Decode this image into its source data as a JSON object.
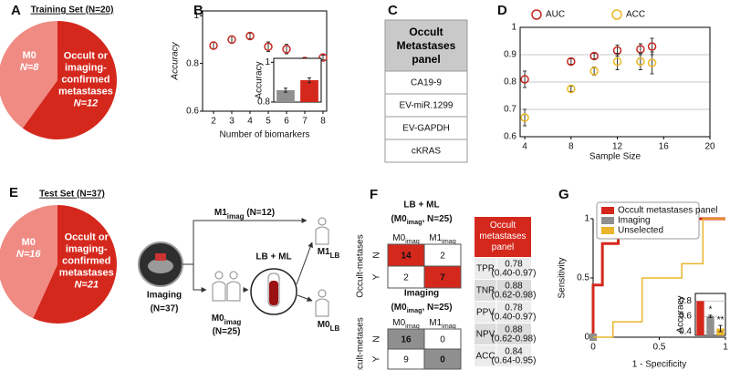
{
  "panel_labels": [
    "A",
    "B",
    "C",
    "D",
    "E",
    "F",
    "G"
  ],
  "chart_data": [
    {
      "type": "pie",
      "title": "Training Set (N=20)",
      "categories": [
        "M0",
        "Occult or imaging-confirmed metastases"
      ],
      "values": [
        8,
        12
      ],
      "value_labels": [
        "N=8",
        "N=12"
      ],
      "colors": [
        "#ef8b83",
        "#d5281d"
      ]
    },
    {
      "type": "scatter",
      "xlabel": "Number of biomarkers",
      "ylabel": "Accuracy",
      "x": [
        2,
        3,
        4,
        5,
        6,
        7,
        8
      ],
      "series": [
        {
          "color": "#c62a22",
          "values": [
            0.875,
            0.9,
            0.915,
            0.87,
            0.86,
            0.81,
            0.825
          ],
          "errors": [
            0.015,
            0.015,
            0.012,
            0.02,
            0.02,
            0.015,
            0.01
          ]
        }
      ],
      "xlim": [
        1.4,
        8.2
      ],
      "ylim": [
        0.6,
        1.02
      ],
      "xticks": [
        2,
        3,
        4,
        5,
        6,
        7,
        8
      ],
      "yticks": [
        0.6,
        0.8,
        1
      ]
    },
    {
      "type": "bar",
      "ylabel": "Accuracy",
      "values": [
        0.86,
        0.91
      ],
      "errors": [
        0.01,
        0.012
      ],
      "colors": [
        "#8f8f8f",
        "#d5281d"
      ],
      "ylim": [
        0.8,
        1.02
      ],
      "yticks": [
        0.8,
        1
      ]
    },
    {
      "type": "scatter",
      "xlabel": "Sample Size",
      "x": [
        4,
        8,
        10,
        12,
        14,
        15
      ],
      "series": [
        {
          "name": "AUC",
          "color": "#c62a22",
          "values": [
            0.81,
            0.875,
            0.895,
            0.915,
            0.92,
            0.93
          ],
          "errors": [
            0.03,
            0.01,
            0.01,
            0.02,
            0.02,
            0.03
          ]
        },
        {
          "name": "ACC",
          "color": "#e9b824",
          "values": [
            0.67,
            0.775,
            0.84,
            0.875,
            0.875,
            0.87
          ],
          "errors": [
            0.03,
            0.01,
            0.015,
            0.03,
            0.03,
            0.04
          ]
        }
      ],
      "xlim": [
        3.6,
        20
      ],
      "ylim": [
        0.6,
        1
      ],
      "xticks": [
        4,
        8,
        12,
        16,
        20
      ],
      "yticks": [
        0.6,
        0.7,
        0.8,
        0.9,
        1
      ],
      "grid": true,
      "legend": "top"
    },
    {
      "type": "pie",
      "title": "Test Set (N=37)",
      "categories": [
        "M0",
        "Occult or imaging-confirmed metastases"
      ],
      "values": [
        16,
        21
      ],
      "value_labels": [
        "N=16",
        "N=21"
      ],
      "colors": [
        "#ef8b83",
        "#d5281d"
      ]
    },
    {
      "type": "line",
      "xlabel": "1 - Specificity",
      "ylabel": "Sensitivity",
      "series": [
        {
          "name": "Occult metastases panel",
          "color": "#d5281d",
          "x": [
            0,
            0,
            0.07,
            0.07,
            0.19,
            0.19,
            0.64,
            0.64,
            1
          ],
          "values": [
            0,
            0.44,
            0.44,
            0.79,
            0.79,
            0.88,
            0.88,
            1,
            1
          ]
        },
        {
          "name": "Imaging",
          "color": "#8f8f8f",
          "x": [
            0
          ],
          "values": [
            0
          ]
        },
        {
          "name": "Unselected",
          "color": "#eab52a",
          "x": [
            0,
            0.15,
            0.15,
            0.37,
            0.37,
            0.67,
            0.67,
            0.83,
            0.83,
            1
          ],
          "values": [
            0,
            0,
            0.13,
            0.13,
            0.5,
            0.5,
            0.62,
            0.62,
            1,
            1
          ]
        }
      ],
      "xlim": [
        0,
        1
      ],
      "ylim": [
        0,
        1
      ],
      "xticks": [
        0,
        0.5,
        1
      ],
      "yticks": [
        0,
        0.5,
        1
      ],
      "legend": "top-left"
    },
    {
      "type": "bar",
      "ylabel": "Accuracy",
      "values": [
        0.8,
        0.6,
        0.44
      ],
      "errors": [
        0,
        0.015,
        0.04
      ],
      "colors": [
        "#d5281d",
        "#8f8f8f",
        "#eab52a"
      ],
      "annotations": [
        "*",
        "**"
      ],
      "ylim": [
        0.35,
        0.9
      ],
      "yticks": [
        0.4,
        0.6,
        0.8
      ],
      "grid": true
    }
  ],
  "table_c": {
    "header": "Occult Metastases panel",
    "rows": [
      "CA19-9",
      "EV-miR.1299",
      "EV-GAPDH",
      "cKRAS"
    ]
  },
  "diagram_e": {
    "imaging": "Imaging",
    "imaging_n": "(N=37)",
    "m1_imag": {
      "base": "M1",
      "sub": "imag",
      "rest": " (N=12)"
    },
    "m0_imag": {
      "base": "M0",
      "sub": "imag"
    },
    "m0_imag_n": "(N=25)",
    "lb_ml": "LB + ML",
    "m1_lb": {
      "base": "M1",
      "sub": "LB"
    },
    "m0_lb": {
      "base": "M0",
      "sub": "LB"
    }
  },
  "matrices_f": [
    {
      "title": "LB + ML",
      "subtitle": {
        "open": "(M0",
        "sub": "imag",
        "rest": ", N=25)"
      },
      "color": "#d5281d",
      "columns": [
        {
          "base": "M0",
          "sub": "imag"
        },
        {
          "base": "M1",
          "sub": "imag"
        }
      ],
      "row_title": "Occult-metases",
      "rows": [
        "N",
        "Y"
      ],
      "cells": [
        [
          14,
          2
        ],
        [
          2,
          7
        ]
      ]
    },
    {
      "title": "Imaging",
      "subtitle": {
        "open": "(M0",
        "sub": "imag",
        "rest": ", N=25)"
      },
      "color": "#8f8f8f",
      "columns": [
        {
          "base": "M0",
          "sub": "imag"
        },
        {
          "base": "M1",
          "sub": "imag"
        }
      ],
      "row_title": "Occult-metases",
      "rows": [
        "N",
        "Y"
      ],
      "cells": [
        [
          16,
          0
        ],
        [
          9,
          0
        ]
      ]
    }
  ],
  "metrics_f": {
    "header": "Occult metastases panel",
    "rows": [
      {
        "metric": "TPR",
        "value": "0.78",
        "ci": "(0.40-0.97)"
      },
      {
        "metric": "TNR",
        "value": "0.88",
        "ci": "(0.62-0.98)"
      },
      {
        "metric": "PPV",
        "value": "0.78",
        "ci": "(0.40-0.97)"
      },
      {
        "metric": "NPV",
        "value": "0.88",
        "ci": "(0.62-0.98)"
      },
      {
        "metric": "ACC",
        "value": "0.84",
        "ci": "(0.64-0.95)"
      }
    ]
  }
}
